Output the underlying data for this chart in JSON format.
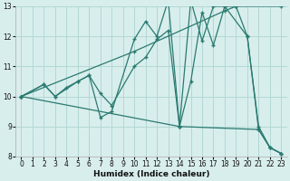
{
  "xlabel": "Humidex (Indice chaleur)",
  "bg_color": "#d8eeed",
  "grid_color": "#b2d8d4",
  "line_color": "#2a7a70",
  "xlim": [
    -0.5,
    23.5
  ],
  "ylim": [
    8,
    13
  ],
  "xticks": [
    0,
    1,
    2,
    3,
    4,
    5,
    6,
    7,
    8,
    9,
    10,
    11,
    12,
    13,
    14,
    15,
    16,
    17,
    18,
    19,
    20,
    21,
    22,
    23
  ],
  "yticks": [
    8,
    9,
    10,
    11,
    12,
    13
  ],
  "lines": [
    {
      "x": [
        0,
        2,
        3,
        4,
        5,
        6,
        7,
        8,
        10,
        11,
        12,
        13,
        14,
        15,
        16,
        17,
        18,
        19,
        20,
        21,
        22,
        23
      ],
      "y": [
        10,
        10.4,
        10.0,
        10.3,
        10.5,
        10.7,
        9.3,
        9.5,
        11.9,
        12.5,
        12.0,
        13.2,
        9.0,
        10.5,
        12.8,
        11.7,
        13.0,
        13.0,
        12.0,
        9.0,
        8.3,
        8.1
      ]
    },
    {
      "x": [
        0,
        2,
        3,
        5,
        6,
        7,
        8,
        10,
        11,
        12,
        13,
        14,
        15,
        16,
        17,
        18,
        20,
        21,
        22,
        23
      ],
      "y": [
        10,
        10.4,
        10.0,
        10.5,
        10.7,
        10.1,
        9.7,
        11.0,
        11.3,
        11.9,
        12.2,
        9.0,
        13.2,
        11.85,
        13.0,
        13.0,
        12.0,
        8.9,
        8.3,
        8.1
      ]
    },
    {
      "x": [
        0,
        14,
        21,
        22,
        23
      ],
      "y": [
        10.0,
        9.0,
        8.9,
        8.3,
        8.1
      ]
    },
    {
      "x": [
        0,
        10,
        18,
        19,
        23
      ],
      "y": [
        10.0,
        11.5,
        12.85,
        13.0,
        13.0
      ]
    }
  ]
}
